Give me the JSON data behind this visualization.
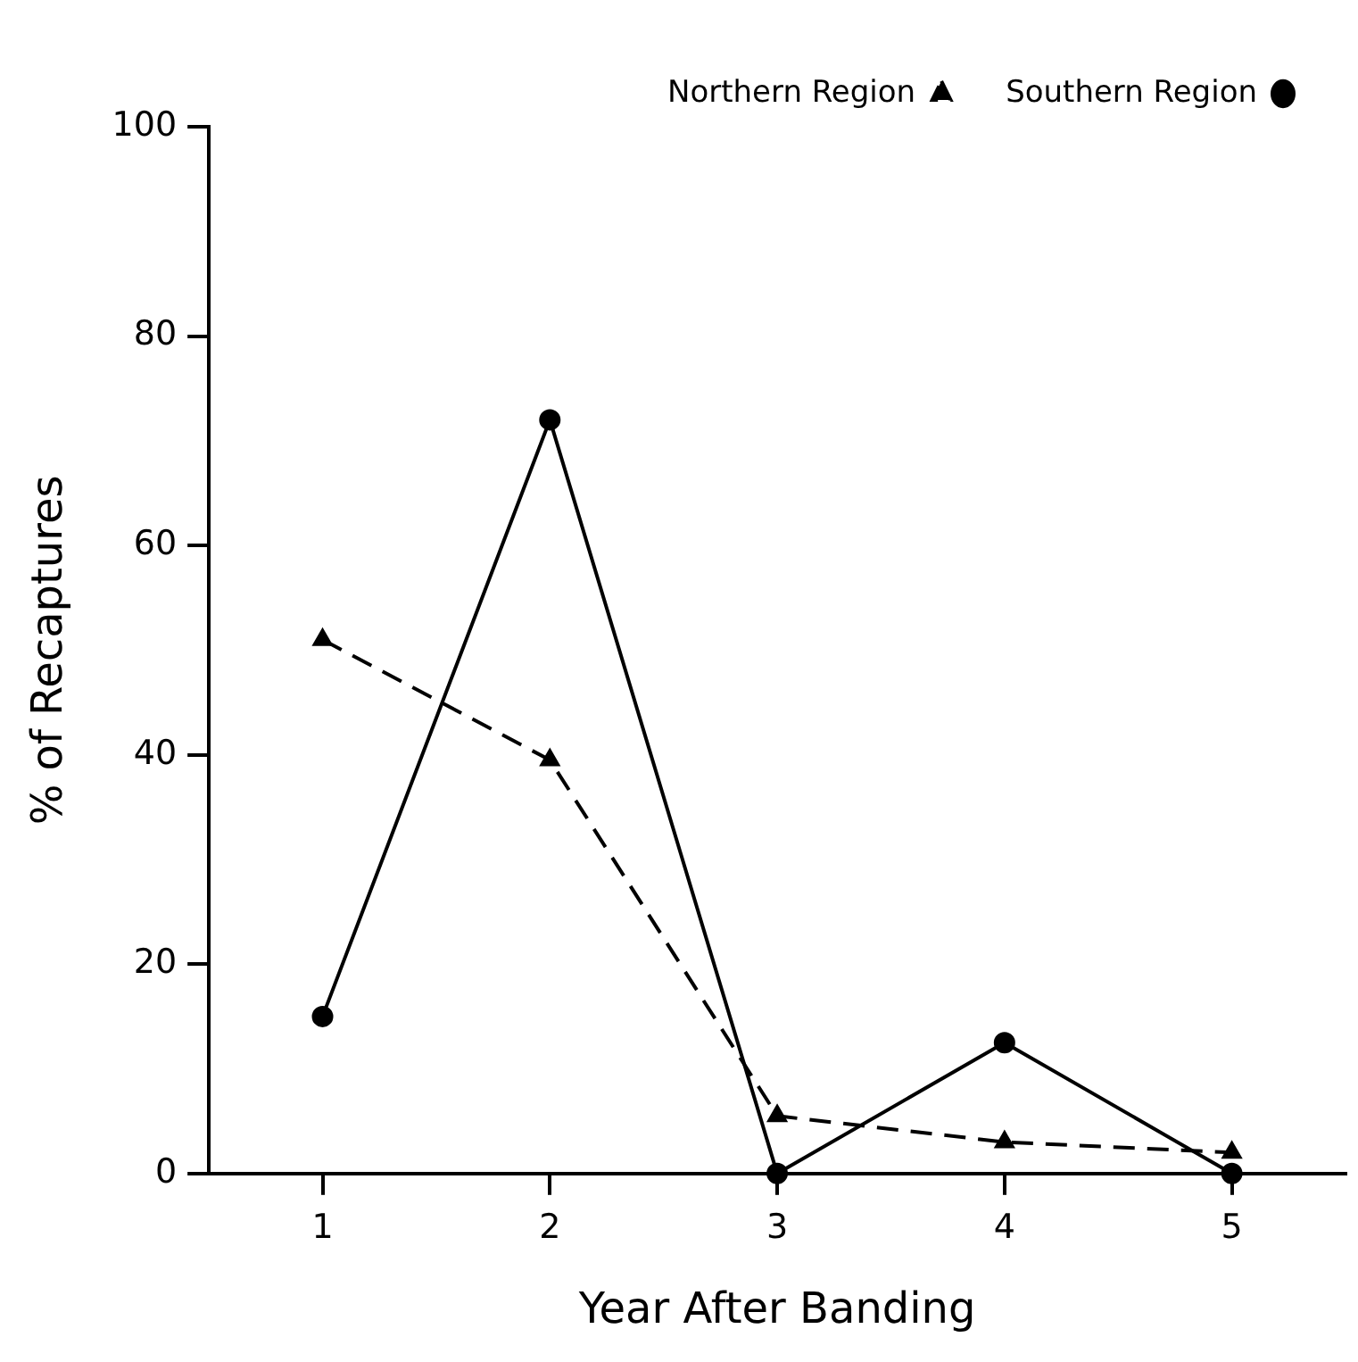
{
  "chart_data": {
    "type": "line",
    "xlabel": "Year After Banding",
    "ylabel": "% of Recaptures",
    "x": [
      1,
      2,
      3,
      4,
      5
    ],
    "xlim": [
      0.5,
      5.5
    ],
    "xticks": [
      1,
      2,
      3,
      4,
      5
    ],
    "ylim": [
      0,
      100
    ],
    "yticks": [
      0,
      20,
      40,
      60,
      80,
      100
    ],
    "grid": false,
    "legend": "top right",
    "series": [
      {
        "name": "Southern Region",
        "color": "#000000",
        "marker": "circle",
        "line_style": "solid",
        "values": [
          15,
          72,
          0,
          12.5,
          0
        ]
      },
      {
        "name": "Northern Region",
        "color": "#000000",
        "marker": "triangle",
        "line_style": "dashed",
        "values": [
          51,
          39.5,
          5.5,
          3,
          2
        ]
      }
    ]
  }
}
